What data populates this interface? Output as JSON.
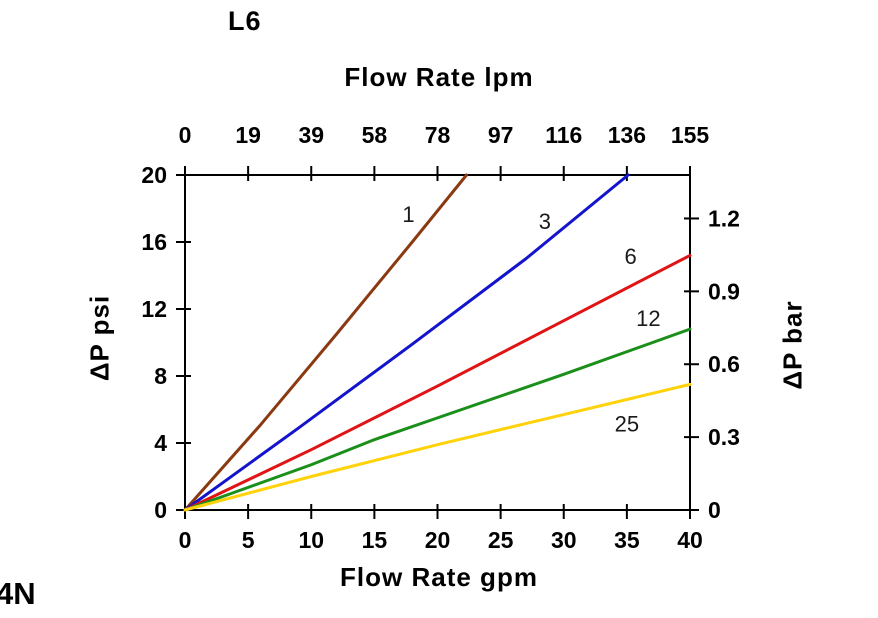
{
  "page": {
    "background": "#ffffff"
  },
  "chart_data": {
    "type": "line",
    "title": "L6",
    "corner_text": "4N",
    "axes": {
      "top": {
        "label": "Flow Rate lpm",
        "tick_labels": [
          "0",
          "19",
          "39",
          "58",
          "78",
          "97",
          "116",
          "136",
          "155"
        ]
      },
      "bottom": {
        "label": "Flow Rate gpm",
        "ticks": [
          0,
          5,
          10,
          15,
          20,
          25,
          30,
          35,
          40
        ],
        "range": [
          0,
          40
        ]
      },
      "left": {
        "label": "ΔP psi",
        "ticks": [
          0,
          4,
          8,
          12,
          16,
          20
        ],
        "range": [
          0,
          20
        ]
      },
      "right": {
        "label": "ΔP bar",
        "tick_labels": [
          "0",
          "0.3",
          "0.6",
          "0.9",
          "1.2"
        ],
        "tick_values_bar": [
          0,
          0.3,
          0.6,
          0.9,
          1.2
        ],
        "psi_per_bar": 14.504
      }
    },
    "grid": false,
    "legend": "inline-labels-on-lines",
    "series": [
      {
        "name": "1",
        "color": "#8a3a10",
        "points": [
          [
            0,
            0
          ],
          [
            6,
            5.1
          ],
          [
            12,
            10.5
          ],
          [
            18,
            16.0
          ],
          [
            22.3,
            20
          ]
        ],
        "label": "1",
        "label_at": [
          17.7,
          17.6
        ]
      },
      {
        "name": "3",
        "color": "#1414cc",
        "points": [
          [
            0,
            0
          ],
          [
            9,
            4.9
          ],
          [
            18,
            9.9
          ],
          [
            27,
            15.0
          ],
          [
            35.1,
            20
          ]
        ],
        "label": "3",
        "label_at": [
          28.5,
          17.2
        ]
      },
      {
        "name": "6",
        "color": "#e01414",
        "points": [
          [
            0,
            0
          ],
          [
            10,
            3.6
          ],
          [
            20,
            7.4
          ],
          [
            30,
            11.3
          ],
          [
            40,
            15.2
          ]
        ],
        "label": "6",
        "label_at": [
          35.3,
          15.1
        ]
      },
      {
        "name": "12",
        "color": "#1a8f1a",
        "points": [
          [
            0,
            0
          ],
          [
            10,
            2.7
          ],
          [
            15,
            4.2
          ],
          [
            20,
            5.5
          ],
          [
            30,
            8.1
          ],
          [
            40,
            10.8
          ]
        ],
        "label": "12",
        "label_at": [
          36.7,
          11.4
        ]
      },
      {
        "name": "25",
        "color": "#ffd20a",
        "points": [
          [
            0,
            0
          ],
          [
            10,
            2.0
          ],
          [
            20,
            3.9
          ],
          [
            30,
            5.7
          ],
          [
            40,
            7.5
          ]
        ],
        "label": "25",
        "label_at": [
          35.0,
          5.1
        ]
      }
    ]
  }
}
